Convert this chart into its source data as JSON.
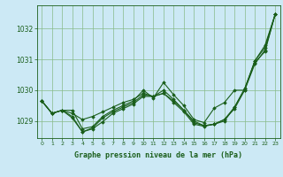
{
  "background_color": "#cce9f5",
  "grid_color": "#88bb88",
  "line_color": "#1a5e1a",
  "marker_color": "#1a5e1a",
  "title": "Graphe pression niveau de la mer (hPa)",
  "xlim": [
    -0.5,
    23.5
  ],
  "ylim": [
    1028.45,
    1032.75
  ],
  "yticks": [
    1029,
    1030,
    1031,
    1032
  ],
  "xticks": [
    0,
    1,
    2,
    3,
    4,
    5,
    6,
    7,
    8,
    9,
    10,
    11,
    12,
    13,
    14,
    15,
    16,
    17,
    18,
    19,
    20,
    21,
    22,
    23
  ],
  "series": [
    [
      1029.65,
      1029.25,
      1029.35,
      1029.35,
      1028.75,
      1028.82,
      1029.15,
      1029.35,
      1029.5,
      1029.65,
      1030.0,
      1029.75,
      1030.25,
      1029.85,
      1029.5,
      1029.05,
      1028.95,
      1029.42,
      1029.6,
      1030.0,
      1030.0,
      1030.95,
      1031.45,
      1032.45
    ],
    [
      1029.65,
      1029.25,
      1029.35,
      1029.25,
      1029.05,
      1029.15,
      1029.3,
      1029.45,
      1029.6,
      1029.7,
      1029.9,
      1029.8,
      1029.9,
      1029.65,
      1029.35,
      1028.95,
      1028.85,
      1028.9,
      1029.05,
      1029.4,
      1030.0,
      1030.85,
      1031.3,
      1032.45
    ],
    [
      1029.65,
      1029.25,
      1029.35,
      1029.15,
      1028.65,
      1028.78,
      1029.1,
      1029.3,
      1029.45,
      1029.6,
      1029.85,
      1029.8,
      1030.0,
      1029.7,
      1029.35,
      1029.0,
      1028.85,
      1028.9,
      1029.05,
      1029.45,
      1030.05,
      1030.95,
      1031.38,
      1032.45
    ],
    [
      1029.65,
      1029.25,
      1029.35,
      1029.1,
      1028.65,
      1028.75,
      1028.98,
      1029.25,
      1029.4,
      1029.55,
      1029.8,
      1029.8,
      1029.9,
      1029.6,
      1029.3,
      1028.9,
      1028.83,
      1028.9,
      1029.0,
      1029.45,
      1030.05,
      1030.9,
      1031.25,
      1032.45
    ]
  ]
}
